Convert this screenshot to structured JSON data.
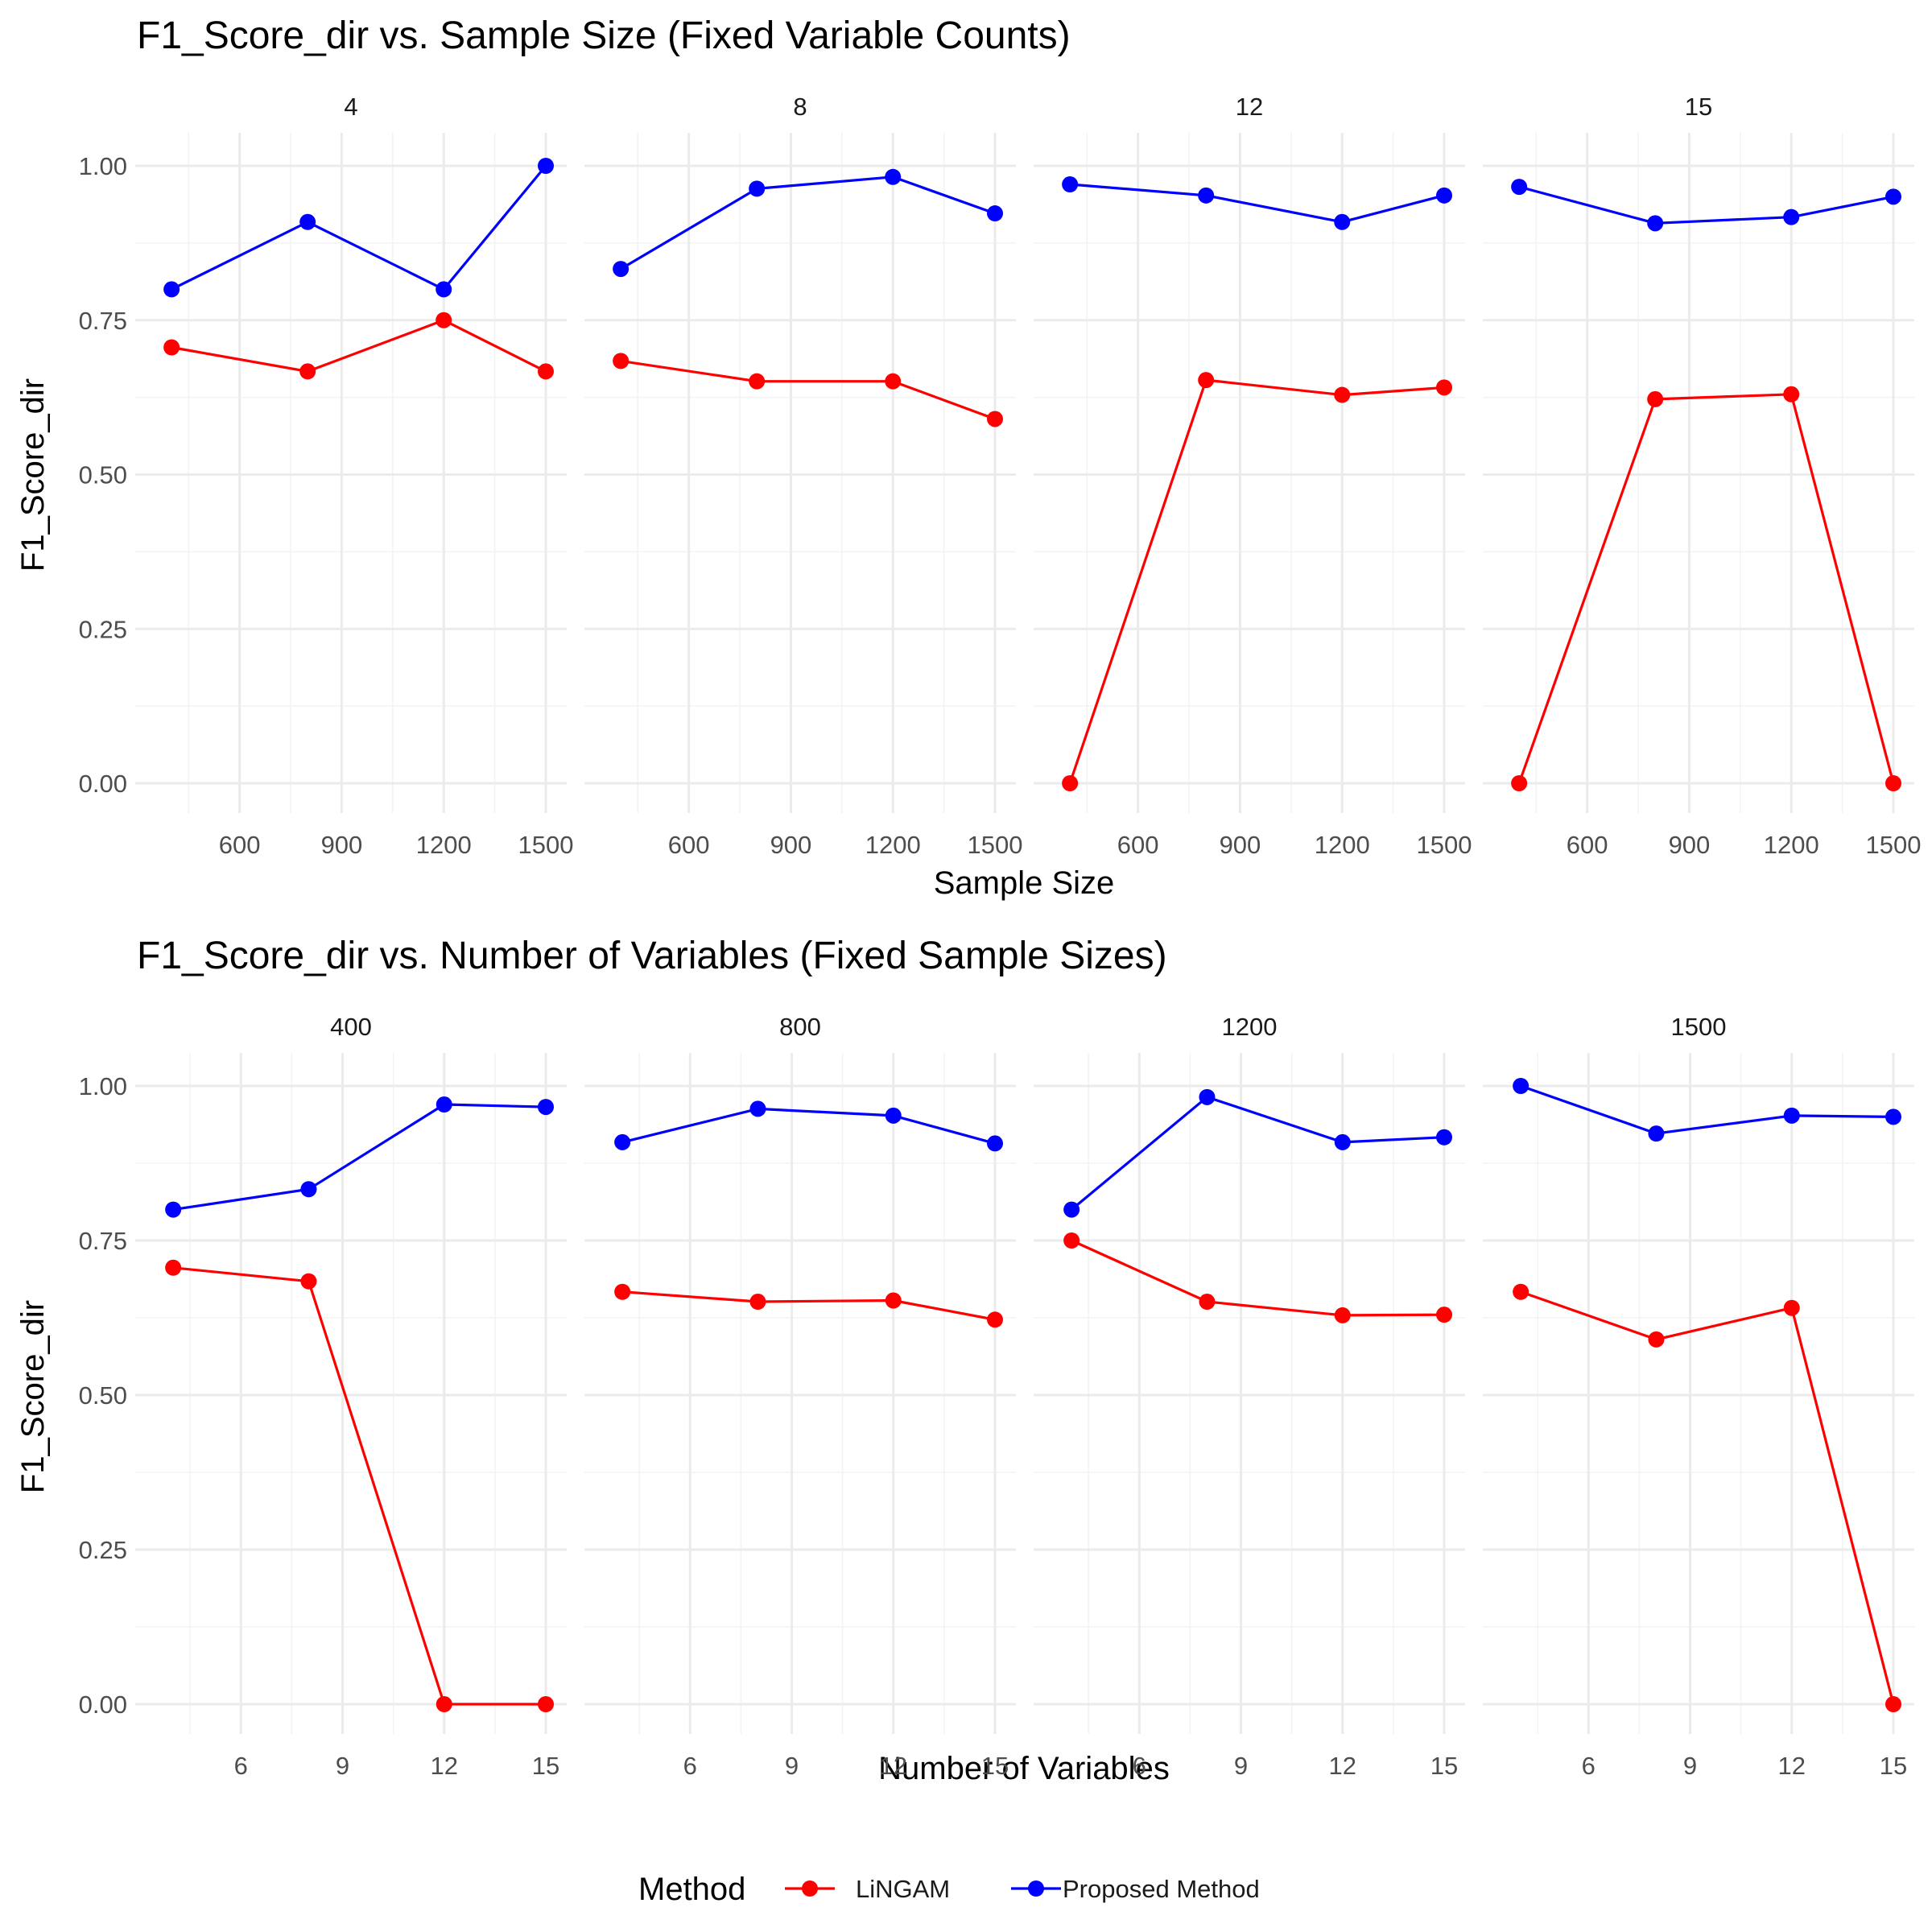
{
  "colors": {
    "LiNGAM": "#ff0000",
    "Proposed Method": "#0000ff"
  },
  "legend": {
    "title": "Method",
    "entries": [
      "LiNGAM",
      "Proposed Method"
    ],
    "placement": "bottom"
  },
  "chart_data": [
    {
      "type": "line",
      "title": "F1_Score_dir vs. Sample Size (Fixed Variable Counts)",
      "xlabel": "Sample Size",
      "ylabel": "F1_Score_dir",
      "xlim": [
        350,
        1500
      ],
      "ylim": [
        0,
        1
      ],
      "xticks": [
        600,
        900,
        1200,
        1500
      ],
      "yticks": [
        0,
        0.25,
        0.5,
        0.75,
        1
      ],
      "ytick_labels": [
        "0.00",
        "0.25",
        "0.50",
        "0.75",
        "1.00"
      ],
      "grid": true,
      "facets": [
        {
          "label": "4",
          "series": [
            {
              "name": "LiNGAM",
              "x": [
                400,
                800,
                1200,
                1500
              ],
              "y": [
                0.706,
                0.667,
                0.75,
                0.667
              ]
            },
            {
              "name": "Proposed Method",
              "x": [
                400,
                800,
                1200,
                1500
              ],
              "y": [
                0.8,
                0.909,
                0.8,
                1.0
              ]
            }
          ]
        },
        {
          "label": "8",
          "series": [
            {
              "name": "LiNGAM",
              "x": [
                400,
                800,
                1200,
                1500
              ],
              "y": [
                0.684,
                0.651,
                0.651,
                0.59
              ]
            },
            {
              "name": "Proposed Method",
              "x": [
                400,
                800,
                1200,
                1500
              ],
              "y": [
                0.833,
                0.963,
                0.982,
                0.923
              ]
            }
          ]
        },
        {
          "label": "12",
          "series": [
            {
              "name": "LiNGAM",
              "x": [
                400,
                800,
                1200,
                1500
              ],
              "y": [
                0.0,
                0.653,
                0.629,
                0.641
              ]
            },
            {
              "name": "Proposed Method",
              "x": [
                400,
                800,
                1200,
                1500
              ],
              "y": [
                0.97,
                0.952,
                0.909,
                0.952
              ]
            }
          ]
        },
        {
          "label": "15",
          "series": [
            {
              "name": "LiNGAM",
              "x": [
                400,
                800,
                1200,
                1500
              ],
              "y": [
                0.0,
                0.622,
                0.63,
                0.0
              ]
            },
            {
              "name": "Proposed Method",
              "x": [
                400,
                800,
                1200,
                1500
              ],
              "y": [
                0.966,
                0.907,
                0.917,
                0.95
              ]
            }
          ]
        }
      ]
    },
    {
      "type": "line",
      "title": "F1_Score_dir vs. Number of Variables (Fixed Sample Sizes)",
      "xlabel": "Number of Variables",
      "ylabel": "F1_Score_dir",
      "xlim": [
        3.45,
        15
      ],
      "ylim": [
        0,
        1
      ],
      "xticks": [
        6,
        9,
        12,
        15
      ],
      "yticks": [
        0,
        0.25,
        0.5,
        0.75,
        1
      ],
      "ytick_labels": [
        "0.00",
        "0.25",
        "0.50",
        "0.75",
        "1.00"
      ],
      "grid": true,
      "facets": [
        {
          "label": "400",
          "series": [
            {
              "name": "LiNGAM",
              "x": [
                4,
                8,
                12,
                15
              ],
              "y": [
                0.706,
                0.684,
                0.0,
                0.0
              ]
            },
            {
              "name": "Proposed Method",
              "x": [
                4,
                8,
                12,
                15
              ],
              "y": [
                0.8,
                0.833,
                0.97,
                0.966
              ]
            }
          ]
        },
        {
          "label": "800",
          "series": [
            {
              "name": "LiNGAM",
              "x": [
                4,
                8,
                12,
                15
              ],
              "y": [
                0.667,
                0.651,
                0.653,
                0.622
              ]
            },
            {
              "name": "Proposed Method",
              "x": [
                4,
                8,
                12,
                15
              ],
              "y": [
                0.909,
                0.963,
                0.952,
                0.907
              ]
            }
          ]
        },
        {
          "label": "1200",
          "series": [
            {
              "name": "LiNGAM",
              "x": [
                4,
                8,
                12,
                15
              ],
              "y": [
                0.75,
                0.651,
                0.629,
                0.63
              ]
            },
            {
              "name": "Proposed Method",
              "x": [
                4,
                8,
                12,
                15
              ],
              "y": [
                0.8,
                0.982,
                0.909,
                0.917
              ]
            }
          ]
        },
        {
          "label": "1500",
          "series": [
            {
              "name": "LiNGAM",
              "x": [
                4,
                8,
                12,
                15
              ],
              "y": [
                0.667,
                0.59,
                0.641,
                0.0
              ]
            },
            {
              "name": "Proposed Method",
              "x": [
                4,
                8,
                12,
                15
              ],
              "y": [
                1.0,
                0.923,
                0.952,
                0.95
              ]
            }
          ]
        }
      ]
    }
  ]
}
